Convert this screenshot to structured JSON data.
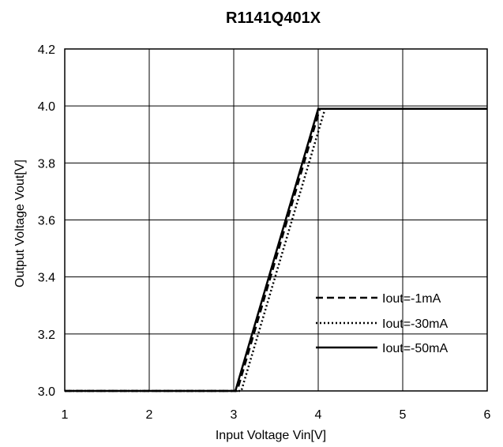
{
  "chart_data": {
    "type": "line",
    "title": "R1141Q401X",
    "xlabel": "Input Voltage Vin[V]",
    "ylabel": "Output Voltage Vout[V]",
    "xlim": [
      1,
      6
    ],
    "ylim": [
      3.0,
      4.2
    ],
    "xticks": [
      "1",
      "2",
      "3",
      "4",
      "5",
      "6"
    ],
    "yticks": [
      "3.0",
      "3.2",
      "3.4",
      "3.6",
      "3.8",
      "4.0",
      "4.2"
    ],
    "grid": true,
    "legend_position": "lower-right",
    "series": [
      {
        "name": "Iout=-1mA",
        "style": "dashed",
        "x": [
          1.0,
          3.04,
          4.02,
          6.0
        ],
        "y": [
          3.0,
          3.0,
          3.99,
          3.99
        ]
      },
      {
        "name": "Iout=-30mA",
        "style": "dotted",
        "x": [
          1.0,
          3.09,
          4.08,
          6.0
        ],
        "y": [
          3.0,
          3.0,
          3.99,
          3.99
        ]
      },
      {
        "name": "Iout=-50mA",
        "style": "solid",
        "x": [
          1.0,
          3.02,
          4.0,
          6.0
        ],
        "y": [
          3.0,
          3.0,
          3.99,
          3.99
        ]
      }
    ]
  }
}
